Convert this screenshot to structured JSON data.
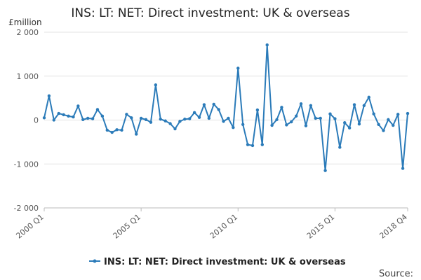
{
  "chart_data": {
    "type": "line",
    "title": "INS: LT: NET: Direct investment: UK & overseas",
    "ylabel": "£million",
    "xlabel": "",
    "ylim": [
      -2000,
      2000
    ],
    "y_ticks": [
      2000,
      1000,
      0,
      -1000,
      -2000
    ],
    "y_tick_labels": [
      "2 000",
      "1 000",
      "0",
      "-1 000",
      "-2 000"
    ],
    "x_ticks": [
      {
        "label": "2000 Q1",
        "index": 0
      },
      {
        "label": "2005 Q1",
        "index": 20
      },
      {
        "label": "2010 Q1",
        "index": 40
      },
      {
        "label": "2015 Q1",
        "index": 60
      },
      {
        "label": "2018 Q4",
        "index": 75
      }
    ],
    "grid": true,
    "legend_position": "bottom",
    "color": "#2b7bb9",
    "series": [
      {
        "name": "INS: LT: NET: Direct investment: UK & overseas",
        "values": [
          50,
          550,
          0,
          150,
          120,
          90,
          70,
          320,
          10,
          40,
          30,
          240,
          90,
          -230,
          -280,
          -220,
          -230,
          130,
          50,
          -320,
          40,
          10,
          -50,
          800,
          20,
          -20,
          -80,
          -200,
          -30,
          20,
          30,
          170,
          60,
          350,
          40,
          360,
          240,
          -30,
          40,
          -170,
          1180,
          -100,
          -560,
          -580,
          230,
          -560,
          1710,
          -120,
          10,
          290,
          -110,
          -40,
          90,
          370,
          -130,
          330,
          40,
          40,
          -1150,
          140,
          30,
          -620,
          -60,
          -180,
          350,
          -90,
          330,
          520,
          140,
          -100,
          -240,
          10,
          -120,
          130,
          -1100,
          150
        ]
      }
    ],
    "source_label": "Source:"
  }
}
